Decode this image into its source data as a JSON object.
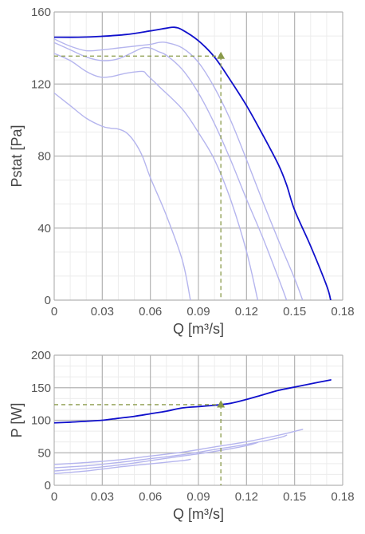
{
  "chart_data": [
    {
      "type": "line",
      "xlabel": "Q [m³/s]",
      "ylabel": "Pstat [Pa]",
      "xlim": [
        0,
        0.18
      ],
      "ylim": [
        0,
        160
      ],
      "x_ticks": [
        "0",
        "0.03",
        "0.06",
        "0.09",
        "0.12",
        "0.15",
        "0.18"
      ],
      "y_ticks": [
        "0",
        "40",
        "80",
        "120",
        "160"
      ],
      "grid": true,
      "colors": {
        "main": "#1010cc",
        "secondary": "#b5b5ee",
        "operating_point": "#8a9a4a"
      },
      "series": [
        {
          "role": "main",
          "x": [
            0,
            0.015,
            0.03,
            0.045,
            0.06,
            0.07,
            0.075,
            0.08,
            0.09,
            0.1,
            0.11,
            0.12,
            0.13,
            0.14,
            0.145,
            0.15,
            0.16,
            0.17,
            0.1725
          ],
          "y": [
            146,
            146,
            146.5,
            147.5,
            149.5,
            151,
            151.5,
            150,
            144,
            135,
            122,
            108,
            92,
            75,
            64,
            50,
            30,
            8,
            0
          ]
        },
        {
          "role": "secondary",
          "x": [
            0,
            0.01,
            0.02,
            0.03,
            0.04,
            0.05,
            0.06,
            0.065,
            0.07,
            0.08,
            0.09,
            0.1,
            0.11,
            0.12,
            0.13,
            0.14,
            0.15,
            0.155
          ],
          "y": [
            145,
            141,
            138.5,
            139,
            140,
            141,
            142,
            143,
            143,
            140,
            132,
            118,
            100,
            78,
            55,
            33,
            12,
            0
          ]
        },
        {
          "role": "secondary",
          "x": [
            0,
            0.01,
            0.02,
            0.03,
            0.04,
            0.05,
            0.055,
            0.06,
            0.065,
            0.07,
            0.08,
            0.09,
            0.1,
            0.11,
            0.12,
            0.13,
            0.14,
            0.145
          ],
          "y": [
            143,
            139,
            135,
            133,
            134,
            138,
            140,
            140,
            138,
            136,
            128,
            115,
            98,
            78,
            56,
            35,
            12,
            0
          ]
        },
        {
          "role": "secondary",
          "x": [
            0,
            0.01,
            0.02,
            0.028,
            0.035,
            0.045,
            0.055,
            0.058,
            0.065,
            0.08,
            0.09,
            0.1,
            0.11,
            0.12,
            0.127
          ],
          "y": [
            137,
            133,
            127,
            124,
            124,
            126,
            127,
            125,
            119,
            106,
            93,
            78,
            56,
            27,
            0
          ]
        },
        {
          "role": "secondary",
          "x": [
            0,
            0.01,
            0.02,
            0.03,
            0.035,
            0.04,
            0.045,
            0.05,
            0.055,
            0.06,
            0.07,
            0.08,
            0.085
          ],
          "y": [
            115,
            108,
            101,
            96.5,
            95.5,
            95,
            93,
            88,
            80,
            68,
            47,
            22,
            0
          ]
        }
      ],
      "operating_point": {
        "x": 0.104,
        "y": 135.5
      }
    },
    {
      "type": "line",
      "xlabel": "Q [m³/s]",
      "ylabel": "P [W]",
      "xlim": [
        0,
        0.18
      ],
      "ylim": [
        0,
        200
      ],
      "x_ticks": [
        "0",
        "0.03",
        "0.06",
        "0.09",
        "0.12",
        "0.15",
        "0.18"
      ],
      "y_ticks": [
        "0",
        "50",
        "100",
        "150",
        "200"
      ],
      "grid": true,
      "colors": {
        "main": "#1010cc",
        "secondary": "#b5b5ee",
        "operating_point": "#8a9a4a"
      },
      "series": [
        {
          "role": "main",
          "x": [
            0,
            0.01,
            0.02,
            0.03,
            0.04,
            0.05,
            0.06,
            0.07,
            0.08,
            0.09,
            0.1,
            0.11,
            0.12,
            0.13,
            0.14,
            0.15,
            0.16,
            0.1725
          ],
          "y": [
            96,
            97,
            98.5,
            100,
            103,
            106,
            110,
            114,
            119,
            121,
            123,
            126,
            132,
            139,
            146,
            151,
            156,
            162
          ]
        },
        {
          "role": "secondary",
          "x": [
            0,
            0.02,
            0.04,
            0.06,
            0.08,
            0.1,
            0.12,
            0.14,
            0.155
          ],
          "y": [
            32,
            35,
            39,
            45,
            51,
            59,
            67,
            77,
            86
          ]
        },
        {
          "role": "secondary",
          "x": [
            0,
            0.02,
            0.04,
            0.06,
            0.08,
            0.1,
            0.12,
            0.14,
            0.145
          ],
          "y": [
            27,
            30,
            35,
            41,
            47,
            55,
            63,
            73,
            77
          ]
        },
        {
          "role": "secondary",
          "x": [
            0,
            0.02,
            0.04,
            0.06,
            0.08,
            0.1,
            0.12,
            0.127
          ],
          "y": [
            22,
            26,
            31,
            38,
            45,
            52,
            61,
            66
          ]
        },
        {
          "role": "secondary",
          "x": [
            0,
            0.02,
            0.04,
            0.06,
            0.08,
            0.085
          ],
          "y": [
            18,
            22,
            28,
            33,
            38,
            40
          ]
        }
      ],
      "operating_point": {
        "x": 0.104,
        "y": 124
      }
    }
  ]
}
